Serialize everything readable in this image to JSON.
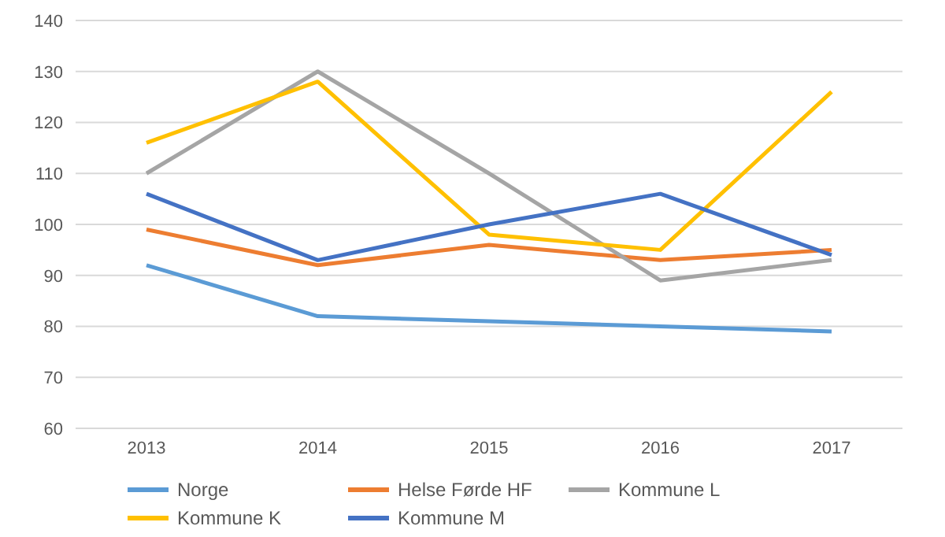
{
  "chart_data": {
    "type": "line",
    "categories": [
      "2013",
      "2014",
      "2015",
      "2016",
      "2017"
    ],
    "series": [
      {
        "name": "Norge",
        "color": "#5b9bd5",
        "values": [
          92,
          82,
          81,
          80,
          79
        ]
      },
      {
        "name": "Helse Førde HF",
        "color": "#ed7d31",
        "values": [
          99,
          92,
          96,
          93,
          95
        ]
      },
      {
        "name": "Kommune L",
        "color": "#a5a5a5",
        "values": [
          110,
          130,
          110,
          89,
          93
        ]
      },
      {
        "name": "Kommune K",
        "color": "#ffc000",
        "values": [
          116,
          128,
          98,
          95,
          126
        ]
      },
      {
        "name": "Kommune M",
        "color": "#4472c4",
        "values": [
          106,
          93,
          100,
          106,
          94
        ]
      }
    ],
    "ylim": [
      60,
      140
    ],
    "yticks": [
      60,
      70,
      80,
      90,
      100,
      110,
      120,
      130,
      140
    ],
    "grid": "y",
    "legend": "bottom",
    "marker": "none",
    "line_style": "solid"
  }
}
